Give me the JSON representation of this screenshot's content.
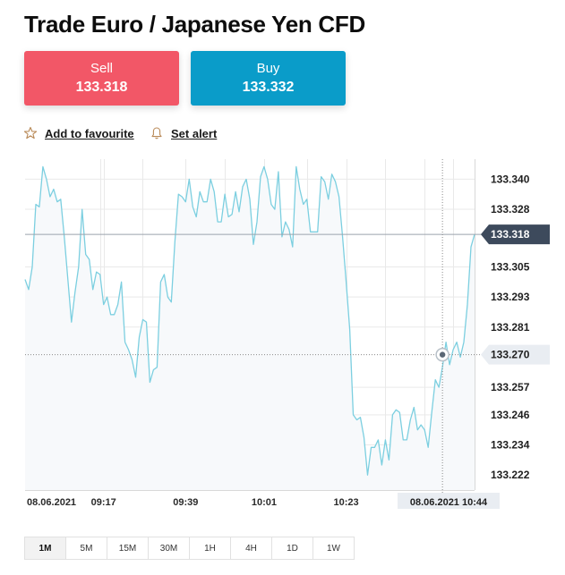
{
  "page": {
    "title": "Trade Euro / Japanese Yen CFD"
  },
  "trade": {
    "sell": {
      "label": "Sell",
      "price": "133.318",
      "color": "#f25767"
    },
    "buy": {
      "label": "Buy",
      "price": "133.332",
      "color": "#0a9cc9"
    }
  },
  "actions": {
    "favourite": {
      "label": "Add to favourite",
      "icon": "star-outline-icon"
    },
    "alert": {
      "label": "Set alert",
      "icon": "bell-icon"
    }
  },
  "chart_data": {
    "type": "line",
    "y_ticks": [
      "133.340",
      "133.328",
      "133.305",
      "133.293",
      "133.281",
      "133.257",
      "133.246",
      "133.234",
      "133.222"
    ],
    "ylim": [
      133.216,
      133.348
    ],
    "current_price": "133.318",
    "crosshair_price": "133.270",
    "crosshair_time": "08.06.2021 10:44",
    "x_ticks": [
      "08.06.2021",
      "09:17",
      "09:39",
      "10:01",
      "10:23"
    ],
    "x": [
      0,
      1,
      2,
      3,
      4,
      5,
      6,
      7,
      8,
      9,
      10,
      11,
      12,
      13,
      14,
      15,
      16,
      17,
      18,
      19,
      20,
      21,
      22,
      23,
      24,
      25,
      26,
      27,
      28,
      29,
      30,
      31,
      32,
      33,
      34,
      35,
      36,
      37,
      38,
      39,
      40,
      41,
      42,
      43,
      44,
      45,
      46,
      47,
      48,
      49,
      50,
      51,
      52,
      53,
      54,
      55,
      56,
      57,
      58,
      59,
      60,
      61,
      62,
      63,
      64,
      65,
      66,
      67,
      68,
      69,
      70,
      71,
      72,
      73,
      74,
      75,
      76,
      77,
      78,
      79,
      80,
      81,
      82,
      83,
      84,
      85,
      86,
      87,
      88,
      89,
      90,
      91,
      92,
      93,
      94,
      95,
      96,
      97,
      98,
      99,
      100,
      101,
      102,
      103,
      104,
      105,
      106,
      107,
      108,
      109,
      110,
      111,
      112,
      113,
      114,
      115,
      116,
      117,
      118,
      119,
      120,
      121,
      122,
      123,
      124,
      125,
      126
    ],
    "values": [
      133.3,
      133.296,
      133.305,
      133.33,
      133.329,
      133.345,
      133.34,
      133.333,
      133.336,
      133.331,
      133.332,
      133.317,
      133.3,
      133.283,
      133.295,
      133.305,
      133.328,
      133.31,
      133.308,
      133.296,
      133.303,
      133.302,
      133.29,
      133.293,
      133.286,
      133.286,
      133.29,
      133.299,
      133.275,
      133.272,
      133.268,
      133.261,
      133.277,
      133.284,
      133.283,
      133.259,
      133.264,
      133.265,
      133.299,
      133.302,
      133.293,
      133.291,
      133.315,
      133.334,
      133.333,
      133.331,
      133.34,
      133.329,
      133.325,
      133.335,
      133.331,
      133.331,
      133.34,
      133.335,
      133.323,
      133.323,
      133.334,
      133.325,
      133.326,
      133.335,
      133.327,
      133.337,
      133.34,
      133.332,
      133.314,
      133.323,
      133.341,
      133.345,
      133.34,
      133.33,
      133.328,
      133.343,
      133.317,
      133.323,
      133.32,
      133.313,
      133.345,
      133.336,
      133.33,
      133.332,
      133.319,
      133.319,
      133.319,
      133.341,
      133.339,
      133.332,
      133.342,
      133.339,
      133.333,
      133.317,
      133.299,
      133.28,
      133.246,
      133.244,
      133.245,
      133.237,
      133.222,
      133.233,
      133.233,
      133.236,
      133.226,
      133.236,
      133.228,
      133.246,
      133.248,
      133.247,
      133.236,
      133.236,
      133.244,
      133.249,
      133.24,
      133.242,
      133.24,
      133.233,
      133.247,
      133.26,
      133.257,
      133.265,
      133.275,
      133.266,
      133.272,
      133.275,
      133.269,
      133.275,
      133.29,
      133.313,
      133.318
    ],
    "colors": {
      "line": "#7ccfe0",
      "area": "#f7f9fb",
      "grid": "#e9e9e9",
      "price_tag": "#3d4a5c",
      "crosshair_tag": "#e9edf2"
    }
  },
  "timeframes": [
    {
      "label": "1M",
      "active": true
    },
    {
      "label": "5M",
      "active": false
    },
    {
      "label": "15M",
      "active": false
    },
    {
      "label": "30M",
      "active": false
    },
    {
      "label": "1H",
      "active": false
    },
    {
      "label": "4H",
      "active": false
    },
    {
      "label": "1D",
      "active": false
    },
    {
      "label": "1W",
      "active": false
    }
  ]
}
